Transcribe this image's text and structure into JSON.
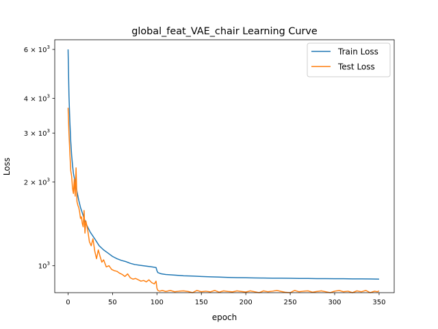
{
  "chart_data": {
    "type": "line",
    "title": "global_feat_VAE_chair Learning Curve",
    "xlabel": "epoch",
    "ylabel": "Loss",
    "xlim": [
      -15,
      367
    ],
    "ylim": [
      800,
      6500
    ],
    "yscale": "log",
    "x_ticks": [
      0,
      50,
      100,
      150,
      200,
      250,
      300,
      350
    ],
    "y_ticks": [
      {
        "value": 1000,
        "base": "10",
        "exp": "3"
      },
      {
        "value": 2000,
        "mant": "2",
        "base": "10",
        "exp": "3"
      },
      {
        "value": 3000,
        "mant": "3",
        "base": "10",
        "exp": "3"
      },
      {
        "value": 4000,
        "mant": "4",
        "base": "10",
        "exp": "3"
      },
      {
        "value": 6000,
        "mant": "6",
        "base": "10",
        "exp": "3"
      }
    ],
    "legend_position": "top-right",
    "grid": false,
    "series": [
      {
        "name": "Train Loss",
        "color": "#1f77b4",
        "x": [
          0,
          1,
          2,
          3,
          4,
          5,
          6,
          8,
          10,
          12,
          14,
          16,
          18,
          20,
          25,
          30,
          35,
          40,
          45,
          50,
          55,
          60,
          65,
          70,
          75,
          80,
          85,
          90,
          95,
          99,
          100,
          101,
          105,
          110,
          120,
          130,
          140,
          150,
          160,
          170,
          180,
          190,
          200,
          210,
          220,
          230,
          240,
          250,
          260,
          270,
          280,
          290,
          300,
          310,
          320,
          330,
          340,
          350
        ],
        "y": [
          6000,
          4100,
          3300,
          2800,
          2500,
          2300,
          2150,
          2000,
          1850,
          1720,
          1620,
          1550,
          1480,
          1420,
          1320,
          1250,
          1180,
          1140,
          1110,
          1080,
          1060,
          1045,
          1035,
          1020,
          1010,
          1005,
          1000,
          995,
          990,
          985,
          960,
          945,
          935,
          930,
          925,
          920,
          918,
          915,
          912,
          910,
          908,
          906,
          905,
          904,
          903,
          902,
          902,
          901,
          900,
          900,
          899,
          899,
          898,
          898,
          897,
          897,
          896,
          895
        ]
      },
      {
        "name": "Test Loss",
        "color": "#ff7f0e",
        "x": [
          0,
          1,
          2,
          3,
          4,
          5,
          6,
          7,
          8,
          9,
          10,
          11,
          12,
          13,
          14,
          15,
          16,
          17,
          18,
          19,
          20,
          22,
          24,
          26,
          28,
          30,
          32,
          34,
          36,
          38,
          40,
          43,
          46,
          49,
          52,
          55,
          58,
          61,
          64,
          67,
          70,
          73,
          76,
          79,
          82,
          85,
          88,
          91,
          94,
          97,
          99,
          100,
          101,
          103,
          106,
          110,
          115,
          120,
          125,
          130,
          135,
          140,
          145,
          150,
          155,
          160,
          165,
          170,
          175,
          180,
          185,
          190,
          195,
          200,
          205,
          210,
          215,
          220,
          225,
          230,
          235,
          240,
          245,
          250,
          255,
          260,
          265,
          270,
          275,
          280,
          285,
          290,
          295,
          300,
          305,
          310,
          315,
          320,
          325,
          330,
          335,
          340,
          345,
          348,
          350
        ],
        "y": [
          3700,
          3000,
          2550,
          2200,
          2100,
          1900,
          1820,
          2050,
          1780,
          2250,
          1700,
          1650,
          1620,
          1560,
          1480,
          1500,
          1420,
          1380,
          1580,
          1310,
          1450,
          1350,
          1220,
          1180,
          1250,
          1130,
          1060,
          1140,
          1080,
          1030,
          1050,
          990,
          1000,
          970,
          960,
          955,
          940,
          930,
          915,
          935,
          905,
          895,
          900,
          890,
          880,
          885,
          875,
          890,
          870,
          860,
          880,
          830,
          815,
          810,
          815,
          808,
          815,
          806,
          810,
          812,
          808,
          800,
          815,
          806,
          810,
          805,
          815,
          803,
          812,
          808,
          805,
          812,
          808,
          804,
          812,
          806,
          800,
          812,
          806,
          810,
          815,
          808,
          802,
          800,
          815,
          806,
          810,
          812,
          803,
          808,
          812,
          806,
          800,
          810,
          815,
          806,
          810,
          800,
          812,
          806,
          815,
          800,
          810,
          806,
          812
        ]
      }
    ]
  }
}
